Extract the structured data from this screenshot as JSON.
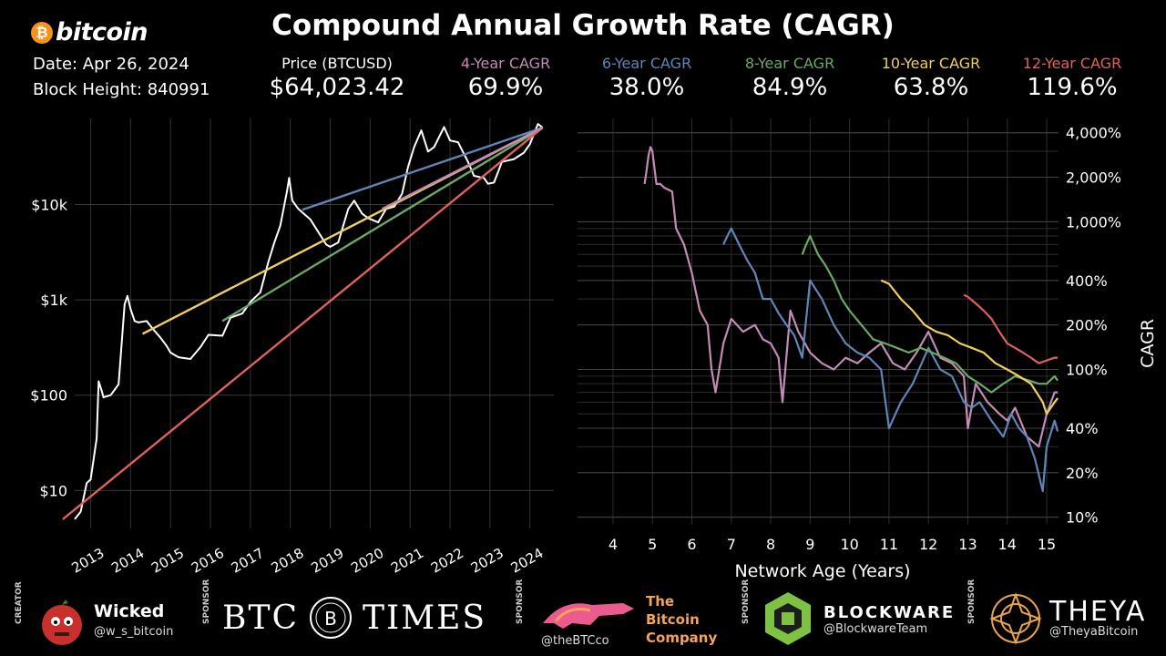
{
  "header": {
    "brand": "bitcoin",
    "brand_symbol": "₿",
    "title": "Compound Annual Growth Rate (CAGR)",
    "date": "Date: Apr 26, 2024",
    "block_height": "Block Height: 840991",
    "price_label": "Price (BTCUSD)",
    "price_value": "$64,023.42",
    "stats": [
      {
        "label": "4-Year CAGR",
        "value": "69.9%",
        "color": "#c38bb5"
      },
      {
        "label": "6-Year CAGR",
        "value": "38.0%",
        "color": "#5f86b7"
      },
      {
        "label": "8-Year CAGR",
        "value": "84.9%",
        "color": "#6aa865"
      },
      {
        "label": "10-Year CAGR",
        "value": "63.8%",
        "color": "#f0cf60"
      },
      {
        "label": "12-Year CAGR",
        "value": "119.6%",
        "color": "#e0605d"
      }
    ]
  },
  "chart_data": [
    {
      "type": "line",
      "yscale": "log",
      "y_tick_labels": [
        "$10",
        "$100",
        "$1k",
        "$10k"
      ],
      "y_ticks": [
        10,
        100,
        1000,
        10000
      ],
      "x_tick_labels": [
        "2013",
        "2014",
        "2015",
        "2016",
        "2017",
        "2018",
        "2019",
        "2020",
        "2021",
        "2022",
        "2023",
        "2024"
      ],
      "xlim": [
        2012.6,
        2024.6
      ],
      "ylim": [
        4,
        80000
      ],
      "series": [
        {
          "color": "#ffffff",
          "x": [
            2012.6,
            2012.75,
            2012.9,
            2013.0,
            2013.15,
            2013.2,
            2013.28,
            2013.32,
            2013.5,
            2013.7,
            2013.85,
            2013.92,
            2014.0,
            2014.1,
            2014.2,
            2014.4,
            2014.55,
            2014.75,
            2014.9,
            2015.0,
            2015.2,
            2015.5,
            2015.75,
            2015.95,
            2016.3,
            2016.5,
            2016.8,
            2017.0,
            2017.25,
            2017.45,
            2017.6,
            2017.75,
            2017.92,
            2017.97,
            2018.05,
            2018.2,
            2018.5,
            2018.9,
            2019.0,
            2019.2,
            2019.45,
            2019.6,
            2019.8,
            2019.95,
            2020.2,
            2020.4,
            2020.6,
            2020.8,
            2020.95,
            2021.1,
            2021.28,
            2021.45,
            2021.6,
            2021.85,
            2022.0,
            2022.2,
            2022.45,
            2022.6,
            2022.85,
            2022.95,
            2023.1,
            2023.3,
            2023.6,
            2023.85,
            2024.0,
            2024.2,
            2024.32
          ],
          "y": [
            5,
            6,
            12,
            13,
            35,
            140,
            110,
            95,
            100,
            130,
            900,
            1100,
            800,
            600,
            580,
            600,
            500,
            400,
            330,
            280,
            250,
            240,
            320,
            430,
            420,
            650,
            720,
            950,
            1200,
            2500,
            4000,
            6000,
            14000,
            19000,
            11000,
            9000,
            7000,
            3800,
            3600,
            4000,
            9000,
            11000,
            8000,
            7200,
            6500,
            9000,
            9500,
            13000,
            25000,
            40000,
            60000,
            36000,
            40000,
            65000,
            47000,
            45000,
            28000,
            20000,
            19000,
            16500,
            17000,
            28000,
            30000,
            35000,
            43000,
            70000,
            64000
          ]
        },
        {
          "color": "#6aa865",
          "x": [
            2016.3,
            2024.32
          ],
          "y": [
            600,
            64000
          ]
        },
        {
          "color": "#f0cf60",
          "x": [
            2014.3,
            2024.32
          ],
          "y": [
            440,
            64000
          ]
        },
        {
          "color": "#e0605d",
          "x": [
            2012.3,
            2024.32
          ],
          "y": [
            5,
            64000
          ]
        },
        {
          "color": "#5f86b7",
          "x": [
            2018.3,
            2024.32
          ],
          "y": [
            8800,
            64000
          ]
        },
        {
          "color": "#c38bb5",
          "x": [
            2020.3,
            2024.32
          ],
          "y": [
            9000,
            64000
          ]
        }
      ]
    },
    {
      "type": "line",
      "yscale": "log",
      "xlabel": "Network Age (Years)",
      "ylabel": "CAGR",
      "x_tick_labels": [
        "4",
        "5",
        "6",
        "7",
        "8",
        "9",
        "10",
        "11",
        "12",
        "13",
        "14",
        "15"
      ],
      "x_ticks": [
        4,
        5,
        6,
        7,
        8,
        9,
        10,
        11,
        12,
        13,
        14,
        15
      ],
      "y_tick_labels": [
        "10%",
        "20%",
        "40%",
        "100%",
        "200%",
        "400%",
        "1,000%",
        "2,000%",
        "4,000%"
      ],
      "y_ticks": [
        10,
        20,
        40,
        100,
        200,
        400,
        1000,
        2000,
        4000
      ],
      "xlim": [
        3.1,
        15.3
      ],
      "ylim": [
        9,
        5000
      ],
      "series": [
        {
          "color": "#c38bb5",
          "x": [
            4.8,
            4.85,
            4.9,
            4.95,
            5.0,
            5.1,
            5.2,
            5.3,
            5.5,
            5.6,
            5.8,
            6.0,
            6.2,
            6.4,
            6.5,
            6.6,
            6.8,
            7.0,
            7.3,
            7.6,
            7.8,
            8.0,
            8.2,
            8.3,
            8.5,
            8.7,
            9.0,
            9.3,
            9.6,
            9.9,
            10.2,
            10.5,
            10.8,
            11.1,
            11.4,
            11.7,
            12.0,
            12.3,
            12.6,
            12.9,
            13.0,
            13.2,
            13.5,
            13.8,
            14.0,
            14.2,
            14.5,
            14.8,
            15.0,
            15.2,
            15.28
          ],
          "y": [
            1800,
            2200,
            2800,
            3200,
            3000,
            1800,
            1800,
            1700,
            1600,
            900,
            700,
            450,
            250,
            200,
            100,
            70,
            150,
            220,
            180,
            200,
            160,
            150,
            120,
            60,
            250,
            180,
            130,
            110,
            100,
            120,
            110,
            130,
            150,
            110,
            100,
            130,
            180,
            120,
            110,
            90,
            40,
            80,
            60,
            50,
            45,
            55,
            35,
            30,
            50,
            70,
            70
          ]
        },
        {
          "color": "#5f86b7",
          "x": [
            6.8,
            6.9,
            7.0,
            7.2,
            7.4,
            7.6,
            7.8,
            8.0,
            8.2,
            8.4,
            8.6,
            8.8,
            9.0,
            9.3,
            9.6,
            9.9,
            10.2,
            10.5,
            10.8,
            11.0,
            11.3,
            11.6,
            12.0,
            12.3,
            12.6,
            12.9,
            13.1,
            13.3,
            13.6,
            13.9,
            14.1,
            14.3,
            14.5,
            14.7,
            14.9,
            15.0,
            15.2,
            15.28
          ],
          "y": [
            700,
            800,
            900,
            700,
            550,
            450,
            300,
            300,
            240,
            200,
            170,
            120,
            400,
            300,
            200,
            150,
            130,
            120,
            100,
            40,
            60,
            80,
            140,
            100,
            90,
            60,
            55,
            60,
            45,
            35,
            50,
            40,
            35,
            25,
            15,
            30,
            45,
            38
          ]
        },
        {
          "color": "#6aa865",
          "x": [
            8.8,
            8.9,
            9.0,
            9.2,
            9.4,
            9.6,
            9.8,
            10.0,
            10.3,
            10.6,
            10.9,
            11.2,
            11.5,
            11.8,
            12.1,
            12.4,
            12.7,
            13.0,
            13.3,
            13.6,
            13.9,
            14.2,
            14.5,
            14.8,
            15.0,
            15.2,
            15.28
          ],
          "y": [
            600,
            700,
            800,
            600,
            500,
            400,
            300,
            250,
            200,
            160,
            150,
            140,
            130,
            140,
            130,
            120,
            110,
            90,
            80,
            70,
            80,
            90,
            85,
            80,
            80,
            90,
            84
          ]
        },
        {
          "color": "#f0cf60",
          "x": [
            10.8,
            11.0,
            11.3,
            11.6,
            11.9,
            12.2,
            12.5,
            12.8,
            13.1,
            13.4,
            13.7,
            14.0,
            14.3,
            14.6,
            14.9,
            15.0,
            15.2,
            15.28
          ],
          "y": [
            400,
            380,
            300,
            250,
            200,
            180,
            170,
            150,
            140,
            130,
            110,
            100,
            90,
            80,
            60,
            50,
            60,
            64
          ]
        },
        {
          "color": "#e0605d",
          "x": [
            12.9,
            13.0,
            13.2,
            13.4,
            13.6,
            13.8,
            14.0,
            14.2,
            14.4,
            14.6,
            14.8,
            15.0,
            15.2,
            15.28
          ],
          "y": [
            320,
            310,
            280,
            250,
            220,
            180,
            150,
            140,
            130,
            120,
            110,
            115,
            120,
            120
          ]
        }
      ]
    }
  ],
  "footer": {
    "creator_tag": "CREATOR",
    "creator_name": "Wicked",
    "creator_handle": "@w_s_bitcoin",
    "sponsors": [
      {
        "tag": "SPONSOR",
        "name_left": "BTC",
        "name_mid": "B",
        "name_right": "TIMES"
      },
      {
        "tag": "SPONSOR",
        "handle": "@theBTCco",
        "line1": "The",
        "line2": "Bitcoin",
        "line3": "Company",
        "color": "#f5a35c"
      },
      {
        "tag": "SPONSOR",
        "name": "BLOCKWARE",
        "handle": "@BlockwareTeam"
      },
      {
        "tag": "SPONSOR",
        "name": "THEYA",
        "handle": "@TheyaBitcoin"
      }
    ]
  }
}
